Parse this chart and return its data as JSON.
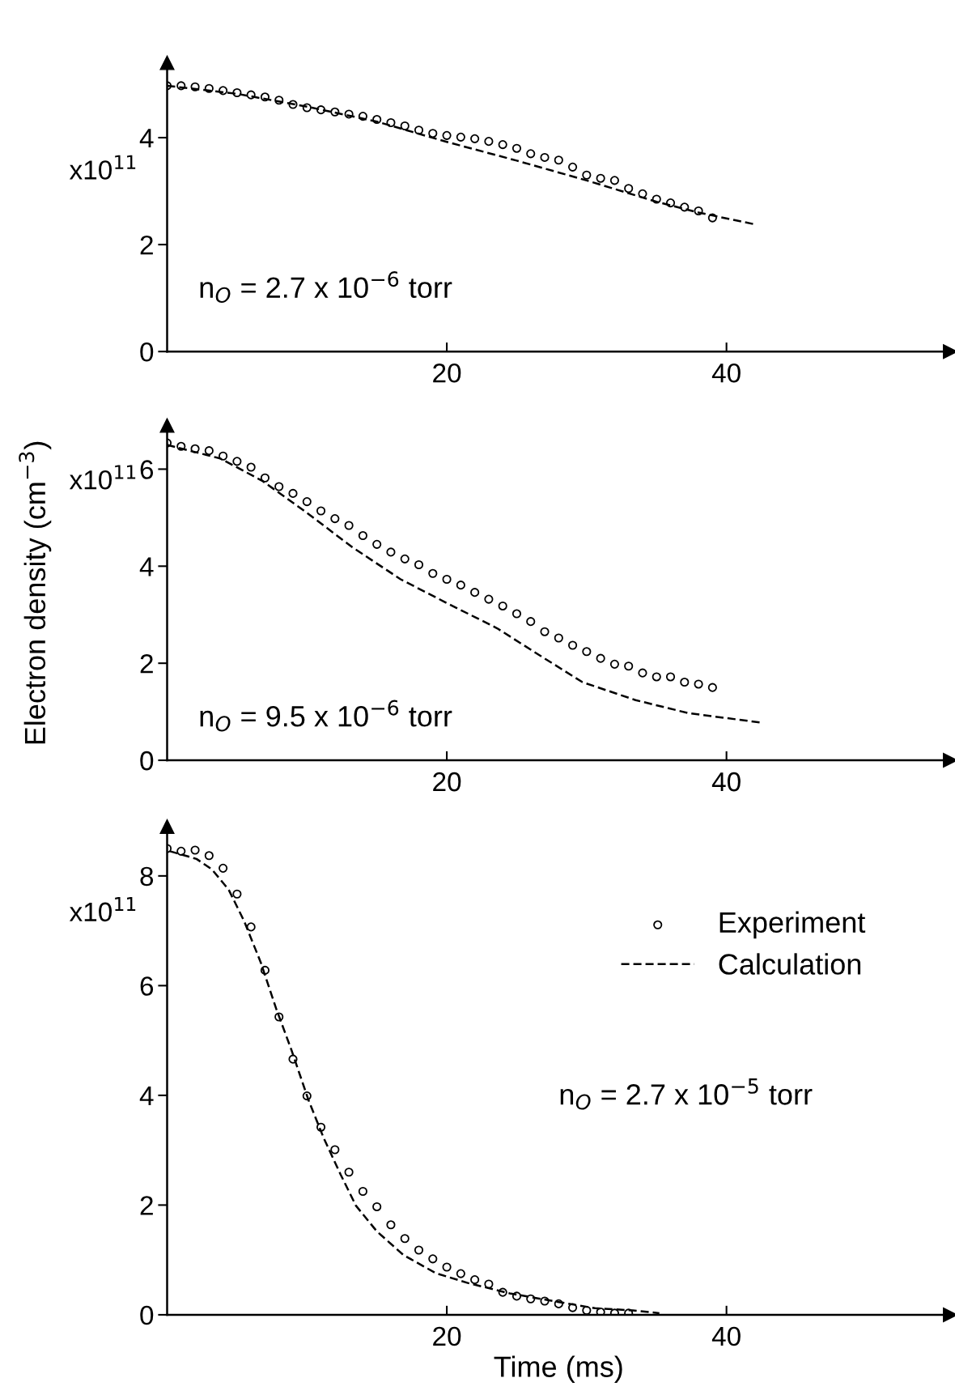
{
  "chart_data": [
    {
      "type": "scatter",
      "xlim": [
        0,
        56
      ],
      "ylim": [
        0,
        5.4
      ],
      "xticks": [
        20,
        40
      ],
      "yticks": [
        0,
        2,
        4
      ],
      "grid": false,
      "legend": false,
      "annotations": [
        "x10$^{11}$",
        "n$_{O}$ = 2.7 x 10$^{−6}$ torr"
      ],
      "series": [
        {
          "color": "#000000",
          "marker": "circle",
          "x": [
            0,
            1,
            2,
            3,
            4,
            5,
            6,
            7,
            8,
            9,
            10,
            11,
            12,
            13,
            14,
            15,
            16,
            17,
            18,
            19,
            20,
            21,
            22,
            23,
            24,
            25,
            26,
            27,
            28,
            29,
            30,
            31,
            32,
            33,
            34,
            35,
            36,
            37,
            38,
            39
          ],
          "values": [
            4.97,
            4.97,
            4.95,
            4.92,
            4.88,
            4.84,
            4.8,
            4.76,
            4.7,
            4.62,
            4.56,
            4.52,
            4.48,
            4.44,
            4.4,
            4.34,
            4.28,
            4.22,
            4.14,
            4.08,
            4.04,
            4.01,
            3.98,
            3.93,
            3.87,
            3.8,
            3.7,
            3.63,
            3.58,
            3.45,
            3.3,
            3.24,
            3.2,
            3.05,
            2.95,
            2.85,
            2.78,
            2.7,
            2.63,
            2.5
          ]
        },
        {
          "type": "line",
          "color": "#000000",
          "line_style": "dashed",
          "marker": "none",
          "x": [
            0,
            5,
            10,
            15,
            20,
            25,
            30,
            35,
            38,
            42
          ],
          "values": [
            4.97,
            4.82,
            4.58,
            4.3,
            3.92,
            3.57,
            3.2,
            2.8,
            2.6,
            2.38
          ]
        }
      ]
    },
    {
      "type": "scatter",
      "xlim": [
        0,
        56
      ],
      "ylim": [
        0,
        6.9
      ],
      "xticks": [
        20,
        40
      ],
      "yticks": [
        0,
        2,
        4,
        6
      ],
      "grid": false,
      "legend": false,
      "ylabel": "Electron density (cm$^{−3}$)",
      "annotations": [
        "x10$^{11}$",
        "n$_{O}$ = 9.5 x 10$^{−6}$ torr"
      ],
      "series": [
        {
          "color": "#000000",
          "marker": "circle",
          "x": [
            0,
            1,
            2,
            3,
            4,
            5,
            6,
            7,
            8,
            9,
            10,
            11,
            12,
            13,
            14,
            15,
            16,
            17,
            18,
            19,
            20,
            21,
            22,
            23,
            24,
            25,
            26,
            27,
            28,
            29,
            30,
            31,
            32,
            33,
            34,
            35,
            36,
            37,
            38,
            39
          ],
          "values": [
            6.54,
            6.47,
            6.42,
            6.38,
            6.27,
            6.16,
            6.04,
            5.82,
            5.64,
            5.5,
            5.33,
            5.14,
            4.98,
            4.84,
            4.63,
            4.45,
            4.29,
            4.15,
            4.03,
            3.85,
            3.73,
            3.61,
            3.46,
            3.32,
            3.18,
            3.02,
            2.86,
            2.65,
            2.52,
            2.37,
            2.24,
            2.1,
            1.98,
            1.94,
            1.8,
            1.72,
            1.72,
            1.61,
            1.57,
            1.5
          ]
        },
        {
          "type": "line",
          "color": "#000000",
          "line_style": "dashed",
          "marker": "none",
          "x": [
            0,
            3.8,
            6.8,
            9.9,
            13.3,
            16.7,
            19.8,
            23.6,
            26.6,
            29.7,
            33.5,
            37.3,
            42.4
          ],
          "values": [
            6.5,
            6.22,
            5.76,
            5.12,
            4.38,
            3.73,
            3.27,
            2.72,
            2.17,
            1.61,
            1.24,
            0.97,
            0.78
          ]
        }
      ]
    },
    {
      "type": "scatter",
      "xlim": [
        0,
        56
      ],
      "ylim": [
        0,
        8.9
      ],
      "xticks": [
        20,
        40
      ],
      "yticks": [
        0,
        2,
        4,
        6,
        8
      ],
      "grid": false,
      "legend": "top right",
      "xlabel": "Time (ms)",
      "annotations": [
        "x10$^{11}$",
        "n$_{O}$ = 2.7 x 10$^{−5}$ torr"
      ],
      "series": [
        {
          "name": "Experiment",
          "color": "#000000",
          "marker": "circle",
          "x": [
            0,
            1,
            2,
            3,
            4,
            5,
            6,
            7,
            8,
            9,
            10,
            11,
            12,
            13,
            14,
            15,
            16,
            17,
            18,
            19,
            20,
            21,
            22,
            23,
            24,
            25,
            26,
            27,
            28,
            29,
            30,
            31,
            32,
            33
          ],
          "values": [
            8.5,
            8.45,
            8.47,
            8.37,
            8.14,
            7.67,
            7.07,
            6.28,
            5.43,
            4.66,
            3.99,
            3.42,
            3.01,
            2.6,
            2.25,
            1.97,
            1.64,
            1.39,
            1.18,
            1.02,
            0.87,
            0.75,
            0.64,
            0.56,
            0.41,
            0.34,
            0.29,
            0.25,
            0.2,
            0.13,
            0.08,
            0.05,
            0.03,
            0.03
          ]
        },
        {
          "type": "line",
          "name": "Calculation",
          "color": "#000000",
          "line_style": "dashed",
          "marker": "none",
          "x": [
            0.2,
            2.1,
            3.2,
            4.4,
            5.5,
            6.7,
            7.8,
            8.9,
            10.1,
            11.2,
            12.4,
            13.5,
            15,
            16.9,
            19.2,
            21.5,
            24.5,
            27.6,
            30.6,
            33.3,
            35.2
          ],
          "values": [
            8.45,
            8.31,
            8.12,
            7.75,
            7.18,
            6.42,
            5.58,
            4.82,
            3.92,
            3.22,
            2.56,
            1.99,
            1.52,
            1.09,
            0.76,
            0.58,
            0.39,
            0.25,
            0.12,
            0.08,
            0.03
          ]
        }
      ]
    }
  ]
}
